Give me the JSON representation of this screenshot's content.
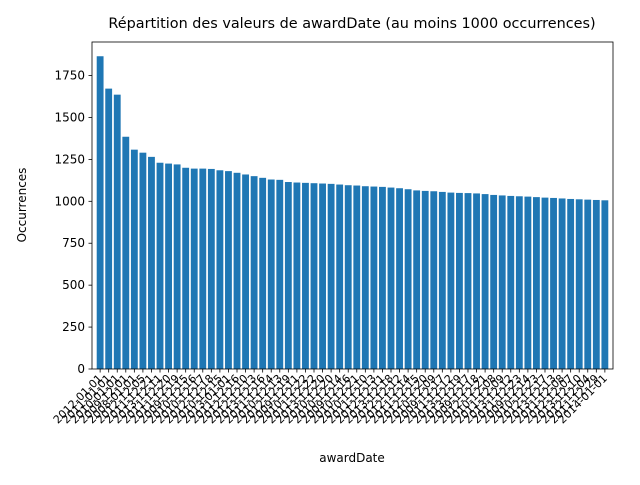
{
  "chart_data": {
    "type": "bar",
    "title": "Répartition des valeurs de awardDate (au moins 1000 occurrences)",
    "xlabel": "awardDate",
    "ylabel": "Occurrences",
    "ylim": [
      0,
      1950
    ],
    "yticks": [
      0,
      250,
      500,
      750,
      1000,
      1250,
      1500,
      1750
    ],
    "grid": false,
    "bar_color": "#1f77b4",
    "categories": [
      "2012-01-01",
      "2011-01-01",
      "2010-01-01",
      "2009-12-01",
      "2008-01-01",
      "2012-12-05",
      "2011-12-21",
      "2013-12-11",
      "2011-12-20",
      "2011-12-19",
      "2009-12-15",
      "2010-12-16",
      "2010-12-17",
      "2012-12-18",
      "2010-12-15",
      "2013-01-01",
      "2011-12-16",
      "2012-12-10",
      "2012-12-13",
      "2013-12-16",
      "2011-12-14",
      "2010-12-13",
      "2012-12-19",
      "2009-12-11",
      "2010-12-22",
      "2011-12-22",
      "2013-12-20",
      "2010-12-20",
      "2010-12-14",
      "2009-12-16",
      "2010-12-21",
      "2010-12-10",
      "2011-12-13",
      "2012-12-11",
      "2013-12-18",
      "2012-12-12",
      "2012-12-14",
      "2011-12-15",
      "2012-12-20",
      "2010-12-09",
      "2009-12-17",
      "2011-12-12",
      "2013-12-19",
      "2013-12-17",
      "2009-12-18",
      "2012-12-21",
      "2010-12-08",
      "2011-12-09",
      "2013-12-12",
      "2011-12-23",
      "2009-12-14",
      "2010-12-23",
      "2012-12-17",
      "2013-12-13",
      "2011-12-08",
      "2012-12-07",
      "2013-12-10",
      "2012-12-04",
      "2011-12-29",
      "2014-01-01"
    ],
    "visible_tick_labels": [
      "2012-01-01",
      "2011-01-01",
      "2014-01-01"
    ],
    "values": [
      1865,
      1672,
      1636,
      1385,
      1308,
      1290,
      1265,
      1230,
      1225,
      1220,
      1200,
      1195,
      1195,
      1193,
      1185,
      1180,
      1170,
      1160,
      1150,
      1140,
      1130,
      1128,
      1115,
      1112,
      1110,
      1108,
      1106,
      1104,
      1100,
      1096,
      1094,
      1090,
      1088,
      1086,
      1082,
      1078,
      1072,
      1065,
      1062,
      1060,
      1056,
      1052,
      1050,
      1049,
      1047,
      1043,
      1038,
      1035,
      1032,
      1030,
      1028,
      1025,
      1022,
      1020,
      1017,
      1014,
      1012,
      1010,
      1008,
      1006
    ]
  }
}
